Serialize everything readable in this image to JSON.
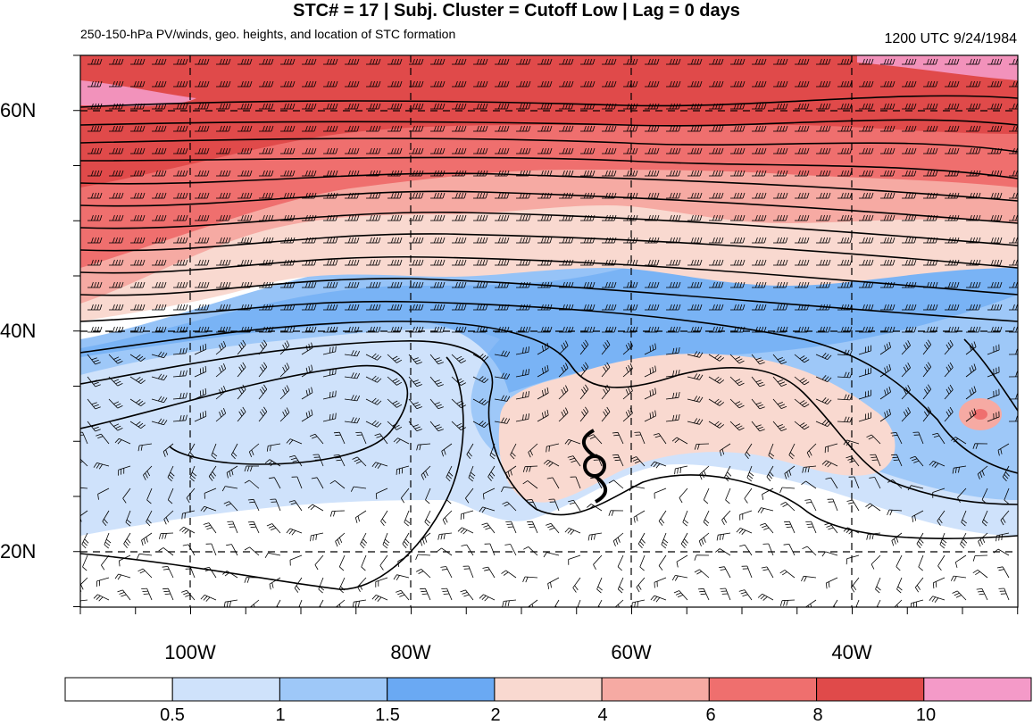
{
  "title": "STC# = 17 | Subj. Cluster = Cutoff Low | Lag = 0 days",
  "subtitle": "250-150-hPa PV/winds, geo. heights, and location of STC formation",
  "datetime": "1200 UTC  9/24/1984",
  "map": {
    "lat_labels": [
      "60N",
      "40N",
      "20N"
    ],
    "lon_labels": [
      "100W",
      "80W",
      "60W",
      "40W"
    ],
    "storm_marker": {
      "lon": -63.5,
      "lat": 27.5
    }
  },
  "colorbar": {
    "labels": [
      "0.5",
      "1",
      "1.5",
      "2",
      "4",
      "6",
      "8",
      "10"
    ],
    "colors": [
      "#ffffff",
      "#cfe2fb",
      "#9ec8f8",
      "#6aa9f3",
      "#f9d9d0",
      "#f6aaa3",
      "#ef6f6e",
      "#e04a4a",
      "#f49ac8"
    ]
  }
}
